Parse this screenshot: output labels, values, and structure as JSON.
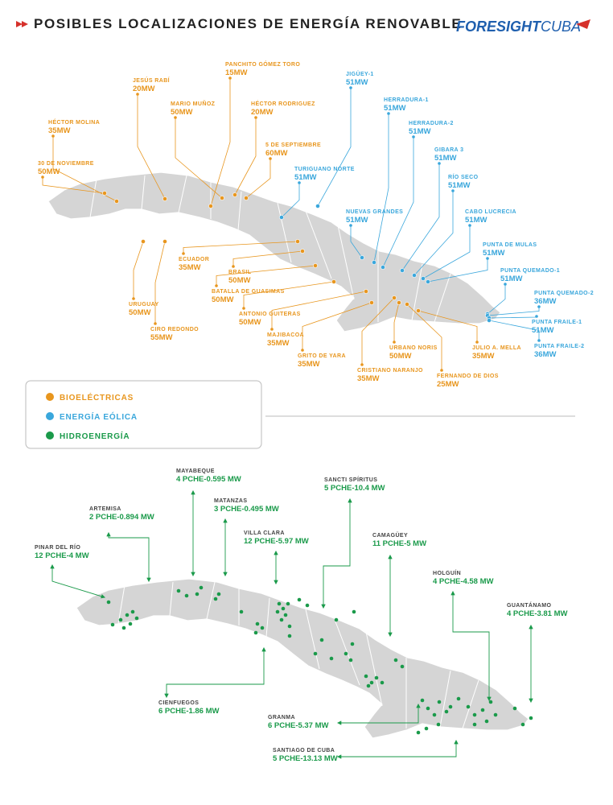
{
  "header": {
    "title": "POSIBLES LOCALIZACIONES DE ENERGÍA RENOVABLE",
    "brand": [
      "FORESIGHT",
      "CUBA"
    ]
  },
  "legend": [
    {
      "label": "BIOELÉCTRICAS",
      "color": "#e8961e"
    },
    {
      "label": "ENERGÍA EÓLICA",
      "color": "#3aa7dc"
    },
    {
      "label": "HIDROENERGÍA",
      "color": "#1a9a4a"
    }
  ],
  "bioelectric_sites": [
    {
      "name": "JESÚS RABÍ",
      "capacity": "20MW"
    },
    {
      "name": "PANCHITO GÓMEZ TORO",
      "capacity": "15MW"
    },
    {
      "name": "MARIO MUÑOZ",
      "capacity": "50MW"
    },
    {
      "name": "HÉCTOR RODRIGUEZ",
      "capacity": "20MW"
    },
    {
      "name": "HÉCTOR MOLINA",
      "capacity": "35MW"
    },
    {
      "name": "5 DE SEPTIEMBRE",
      "capacity": "60MW"
    },
    {
      "name": "30 DE NOVIEMBRE",
      "capacity": "50MW"
    },
    {
      "name": "ECUADOR",
      "capacity": "35MW"
    },
    {
      "name": "BRASIL",
      "capacity": "50MW"
    },
    {
      "name": "BATALLA DE GUASIMAS",
      "capacity": "50MW"
    },
    {
      "name": "URUGUAY",
      "capacity": "50MW"
    },
    {
      "name": "ANTONIO GUITERAS",
      "capacity": "50MW"
    },
    {
      "name": "CIRO REDONDO",
      "capacity": "55MW"
    },
    {
      "name": "MAJIBACOA",
      "capacity": "35MW"
    },
    {
      "name": "GRITO DE YARA",
      "capacity": "35MW"
    },
    {
      "name": "URBANO NORIS",
      "capacity": "50MW"
    },
    {
      "name": "JULIO A. MELLA",
      "capacity": "35MW"
    },
    {
      "name": "CRISTIANO NARANJO",
      "capacity": "35MW"
    },
    {
      "name": "FERNANDO DE DIOS",
      "capacity": "25MW"
    }
  ],
  "wind_sites": [
    {
      "name": "JIGÜEY-1",
      "capacity": "51MW"
    },
    {
      "name": "HERRADURA-1",
      "capacity": "51MW"
    },
    {
      "name": "HERRADURA-2",
      "capacity": "51MW"
    },
    {
      "name": "TURIGUANO NORTE",
      "capacity": "51MW"
    },
    {
      "name": "GIBARA 3",
      "capacity": "51MW"
    },
    {
      "name": "RÍO SECO",
      "capacity": "51MW"
    },
    {
      "name": "NUEVAS GRANDES",
      "capacity": "51MW"
    },
    {
      "name": "CABO LUCRECIA",
      "capacity": "51MW"
    },
    {
      "name": "PUNTA DE MULAS",
      "capacity": "51MW"
    },
    {
      "name": "PUNTA QUEMADO-1",
      "capacity": "51MW"
    },
    {
      "name": "PUNTA QUEMADO-2",
      "capacity": "36MW"
    },
    {
      "name": "PUNTA FRAILE-1",
      "capacity": "51MW"
    },
    {
      "name": "PUNTA FRAILE-2",
      "capacity": "36MW"
    }
  ],
  "hydro_provinces": [
    {
      "name": "PINAR DEL RÍO",
      "summary": "12 PCHE-4 MW"
    },
    {
      "name": "ARTEMISA",
      "summary": "2 PCHE-0.894 MW"
    },
    {
      "name": "MAYABEQUE",
      "summary": "4 PCHE-0.595 MW"
    },
    {
      "name": "MATANZAS",
      "summary": "3 PCHE-0.495 MW"
    },
    {
      "name": "VILLA CLARA",
      "summary": "12 PCHE-5.97 MW"
    },
    {
      "name": "SANCTI SPÍRITUS",
      "summary": "5 PCHE-10.4 MW"
    },
    {
      "name": "CAMAGÜEY",
      "summary": "11 PCHE-5 MW"
    },
    {
      "name": "HOLGUÍN",
      "summary": "4 PCHE-4.58 MW"
    },
    {
      "name": "GUANTÁNAMO",
      "summary": "4 PCHE-3.81 MW"
    },
    {
      "name": "CIENFUEGOS",
      "summary": "6 PCHE-1.86 MW"
    },
    {
      "name": "GRANMA",
      "summary": "6 PCHE-5.37 MW"
    },
    {
      "name": "SANTIAGO DE CUBA",
      "summary": "5 PCHE-13.13 MW"
    }
  ]
}
